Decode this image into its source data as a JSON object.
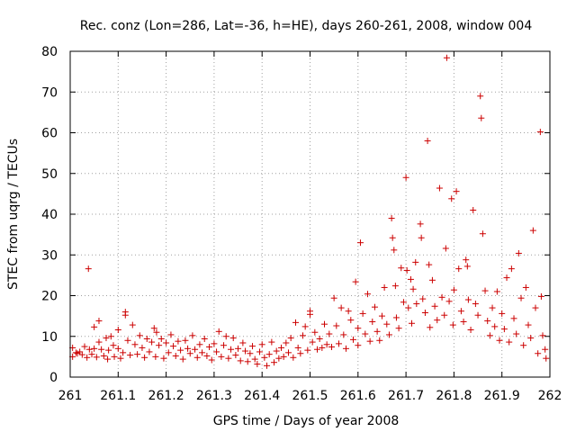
{
  "chart_data": {
    "type": "scatter",
    "title": "Rec. conz (Lon=286, Lat=-36, h=HE), days 260-261, 2008, window 004",
    "xlabel": "GPS time / Days of year 2008",
    "ylabel": "STEC from uqrg / TECUs",
    "xlim": [
      261,
      262
    ],
    "ylim": [
      0,
      80
    ],
    "grid": true,
    "marker": "plus",
    "color": "#cc0000",
    "xticks": [
      {
        "value": 261.0,
        "label": "261"
      },
      {
        "value": 261.1,
        "label": "261.1"
      },
      {
        "value": 261.2,
        "label": "261.2"
      },
      {
        "value": 261.3,
        "label": "261.3"
      },
      {
        "value": 261.4,
        "label": "261.4"
      },
      {
        "value": 261.5,
        "label": "261.5"
      },
      {
        "value": 261.6,
        "label": "261.6"
      },
      {
        "value": 261.7,
        "label": "261.7"
      },
      {
        "value": 261.8,
        "label": "261.8"
      },
      {
        "value": 261.9,
        "label": "261.9"
      },
      {
        "value": 262.0,
        "label": "262"
      }
    ],
    "yticks": [
      {
        "value": 0,
        "label": "0"
      },
      {
        "value": 10,
        "label": "10"
      },
      {
        "value": 20,
        "label": "20"
      },
      {
        "value": 30,
        "label": "30"
      },
      {
        "value": 40,
        "label": "40"
      },
      {
        "value": 50,
        "label": "50"
      },
      {
        "value": 60,
        "label": "60"
      },
      {
        "value": 70,
        "label": "70"
      },
      {
        "value": 80,
        "label": "80"
      }
    ],
    "points": [
      [
        261.005,
        7.2
      ],
      [
        261.005,
        5.0
      ],
      [
        261.012,
        6.0
      ],
      [
        261.015,
        5.8
      ],
      [
        261.02,
        6.2
      ],
      [
        261.025,
        5.5
      ],
      [
        261.03,
        7.5
      ],
      [
        261.035,
        4.8
      ],
      [
        261.038,
        26.6
      ],
      [
        261.04,
        6.8
      ],
      [
        261.045,
        5.6
      ],
      [
        261.05,
        12.3
      ],
      [
        261.05,
        7.0
      ],
      [
        261.055,
        4.9
      ],
      [
        261.06,
        13.8
      ],
      [
        261.06,
        8.6
      ],
      [
        261.065,
        6.8
      ],
      [
        261.07,
        5.2
      ],
      [
        261.075,
        9.6
      ],
      [
        261.078,
        4.4
      ],
      [
        261.08,
        6.6
      ],
      [
        261.085,
        10.0
      ],
      [
        261.09,
        7.8
      ],
      [
        261.092,
        5.0
      ],
      [
        261.1,
        11.6
      ],
      [
        261.1,
        7.0
      ],
      [
        261.105,
        4.6
      ],
      [
        261.11,
        6.0
      ],
      [
        261.115,
        16.0
      ],
      [
        261.115,
        15.2
      ],
      [
        261.12,
        9.0
      ],
      [
        261.125,
        5.4
      ],
      [
        261.13,
        12.8
      ],
      [
        261.135,
        8.0
      ],
      [
        261.14,
        5.6
      ],
      [
        261.145,
        10.2
      ],
      [
        261.15,
        7.2
      ],
      [
        261.155,
        4.8
      ],
      [
        261.16,
        9.4
      ],
      [
        261.165,
        6.2
      ],
      [
        261.17,
        8.6
      ],
      [
        261.175,
        12.0
      ],
      [
        261.178,
        5.0
      ],
      [
        261.18,
        11.0
      ],
      [
        261.185,
        7.8
      ],
      [
        261.19,
        9.4
      ],
      [
        261.195,
        4.6
      ],
      [
        261.2,
        8.4
      ],
      [
        261.205,
        6.0
      ],
      [
        261.21,
        10.4
      ],
      [
        261.215,
        7.6
      ],
      [
        261.22,
        5.2
      ],
      [
        261.225,
        8.8
      ],
      [
        261.23,
        6.6
      ],
      [
        261.235,
        4.4
      ],
      [
        261.24,
        9.0
      ],
      [
        261.245,
        7.0
      ],
      [
        261.25,
        5.8
      ],
      [
        261.255,
        10.2
      ],
      [
        261.26,
        6.8
      ],
      [
        261.265,
        4.8
      ],
      [
        261.27,
        8.0
      ],
      [
        261.275,
        6.0
      ],
      [
        261.28,
        9.4
      ],
      [
        261.285,
        5.2
      ],
      [
        261.29,
        7.4
      ],
      [
        261.295,
        4.2
      ],
      [
        261.3,
        8.2
      ],
      [
        261.305,
        6.2
      ],
      [
        261.31,
        11.2
      ],
      [
        261.315,
        5.0
      ],
      [
        261.32,
        7.8
      ],
      [
        261.325,
        10.0
      ],
      [
        261.33,
        4.6
      ],
      [
        261.335,
        6.8
      ],
      [
        261.34,
        9.6
      ],
      [
        261.345,
        5.4
      ],
      [
        261.35,
        7.0
      ],
      [
        261.355,
        4.0
      ],
      [
        261.36,
        8.4
      ],
      [
        261.365,
        6.4
      ],
      [
        261.37,
        3.8
      ],
      [
        261.375,
        5.8
      ],
      [
        261.38,
        7.6
      ],
      [
        261.385,
        4.4
      ],
      [
        261.39,
        3.2
      ],
      [
        261.395,
        6.2
      ],
      [
        261.4,
        8.0
      ],
      [
        261.405,
        4.8
      ],
      [
        261.41,
        2.8
      ],
      [
        261.415,
        5.6
      ],
      [
        261.42,
        8.6
      ],
      [
        261.425,
        3.6
      ],
      [
        261.43,
        6.4
      ],
      [
        261.435,
        4.6
      ],
      [
        261.44,
        7.2
      ],
      [
        261.445,
        5.0
      ],
      [
        261.45,
        8.4
      ],
      [
        261.455,
        6.0
      ],
      [
        261.46,
        9.6
      ],
      [
        261.465,
        4.8
      ],
      [
        261.47,
        13.4
      ],
      [
        261.475,
        7.2
      ],
      [
        261.48,
        5.8
      ],
      [
        261.485,
        10.2
      ],
      [
        261.49,
        12.4
      ],
      [
        261.495,
        6.6
      ],
      [
        261.5,
        16.2
      ],
      [
        261.5,
        15.4
      ],
      [
        261.505,
        8.6
      ],
      [
        261.51,
        11.0
      ],
      [
        261.515,
        6.8
      ],
      [
        261.52,
        9.4
      ],
      [
        261.525,
        7.2
      ],
      [
        261.53,
        13.0
      ],
      [
        261.535,
        8.0
      ],
      [
        261.54,
        10.6
      ],
      [
        261.545,
        7.4
      ],
      [
        261.55,
        19.4
      ],
      [
        261.555,
        12.6
      ],
      [
        261.56,
        8.2
      ],
      [
        261.565,
        17.0
      ],
      [
        261.57,
        10.4
      ],
      [
        261.575,
        7.0
      ],
      [
        261.58,
        16.2
      ],
      [
        261.585,
        14.0
      ],
      [
        261.59,
        9.2
      ],
      [
        261.595,
        23.4
      ],
      [
        261.6,
        12.0
      ],
      [
        261.6,
        7.8
      ],
      [
        261.605,
        33.0
      ],
      [
        261.61,
        15.6
      ],
      [
        261.615,
        10.6
      ],
      [
        261.62,
        20.4
      ],
      [
        261.625,
        8.8
      ],
      [
        261.63,
        13.6
      ],
      [
        261.635,
        17.2
      ],
      [
        261.64,
        11.2
      ],
      [
        261.645,
        9.0
      ],
      [
        261.65,
        15.0
      ],
      [
        261.655,
        22.0
      ],
      [
        261.66,
        13.0
      ],
      [
        261.665,
        10.4
      ],
      [
        261.67,
        39.0
      ],
      [
        261.672,
        34.2
      ],
      [
        261.675,
        31.2
      ],
      [
        261.678,
        22.4
      ],
      [
        261.68,
        14.6
      ],
      [
        261.685,
        12.0
      ],
      [
        261.69,
        26.8
      ],
      [
        261.695,
        18.4
      ],
      [
        261.7,
        49.0
      ],
      [
        261.702,
        26.2
      ],
      [
        261.705,
        17.0
      ],
      [
        261.71,
        24.0
      ],
      [
        261.712,
        13.2
      ],
      [
        261.715,
        21.6
      ],
      [
        261.72,
        28.2
      ],
      [
        261.722,
        18.0
      ],
      [
        261.73,
        37.6
      ],
      [
        261.732,
        34.2
      ],
      [
        261.735,
        19.2
      ],
      [
        261.74,
        15.8
      ],
      [
        261.745,
        58.0
      ],
      [
        261.748,
        27.6
      ],
      [
        261.75,
        12.2
      ],
      [
        261.755,
        23.8
      ],
      [
        261.76,
        17.4
      ],
      [
        261.765,
        14.0
      ],
      [
        261.77,
        46.4
      ],
      [
        261.775,
        19.6
      ],
      [
        261.78,
        15.2
      ],
      [
        261.783,
        31.6
      ],
      [
        261.785,
        78.4
      ],
      [
        261.79,
        18.6
      ],
      [
        261.795,
        43.8
      ],
      [
        261.798,
        12.8
      ],
      [
        261.8,
        21.4
      ],
      [
        261.805,
        45.6
      ],
      [
        261.81,
        26.6
      ],
      [
        261.815,
        16.2
      ],
      [
        261.82,
        13.6
      ],
      [
        261.825,
        28.8
      ],
      [
        261.828,
        27.2
      ],
      [
        261.83,
        19.0
      ],
      [
        261.835,
        11.6
      ],
      [
        261.84,
        41.0
      ],
      [
        261.845,
        18.0
      ],
      [
        261.85,
        15.2
      ],
      [
        261.855,
        69.0
      ],
      [
        261.857,
        63.6
      ],
      [
        261.86,
        35.2
      ],
      [
        261.865,
        21.2
      ],
      [
        261.87,
        13.8
      ],
      [
        261.875,
        10.2
      ],
      [
        261.88,
        17.0
      ],
      [
        261.885,
        12.4
      ],
      [
        261.89,
        21.0
      ],
      [
        261.895,
        9.0
      ],
      [
        261.9,
        15.6
      ],
      [
        261.905,
        11.8
      ],
      [
        261.91,
        24.4
      ],
      [
        261.915,
        8.6
      ],
      [
        261.92,
        26.6
      ],
      [
        261.925,
        14.4
      ],
      [
        261.93,
        10.6
      ],
      [
        261.935,
        30.4
      ],
      [
        261.94,
        19.4
      ],
      [
        261.945,
        7.8
      ],
      [
        261.95,
        22.0
      ],
      [
        261.955,
        12.8
      ],
      [
        261.96,
        9.6
      ],
      [
        261.965,
        36.0
      ],
      [
        261.97,
        17.0
      ],
      [
        261.975,
        5.8
      ],
      [
        261.98,
        60.2
      ],
      [
        261.982,
        19.8
      ],
      [
        261.985,
        10.2
      ],
      [
        261.99,
        6.8
      ],
      [
        261.992,
        4.6
      ]
    ]
  }
}
